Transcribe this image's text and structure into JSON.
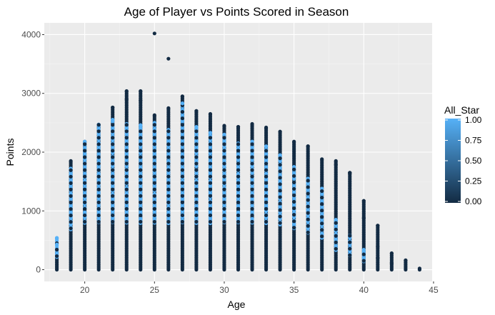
{
  "chart_data": {
    "type": "scatter",
    "title": "Age of Player vs Points Scored in Season",
    "xlabel": "Age",
    "ylabel": "Points",
    "xlim": [
      17.1,
      44.9
    ],
    "ylim": [
      -200,
      4200
    ],
    "xticks": [
      20,
      25,
      30,
      35,
      40,
      45
    ],
    "yticks": [
      0,
      1000,
      2000,
      3000,
      4000
    ],
    "grid": true,
    "background": "#ebebeb",
    "legend": {
      "title": "All_Star",
      "position": "right",
      "labels": [
        "1.00",
        "0.75",
        "0.50",
        "0.25",
        "0.00"
      ],
      "values": [
        1.0,
        0.75,
        0.5,
        0.25,
        0.0
      ],
      "color_low": "#132b43",
      "color_high": "#56b1f7"
    },
    "columns": [
      {
        "x": 18,
        "ymax": 290,
        "allstar_max": 540
      },
      {
        "x": 19,
        "ymax": 1850,
        "allstar_max": 1720
      },
      {
        "x": 20,
        "ymax": 2180,
        "allstar_max": 2180
      },
      {
        "x": 21,
        "ymax": 2470,
        "allstar_max": 2470
      },
      {
        "x": 22,
        "ymax": 2760,
        "allstar_max": 2550
      },
      {
        "x": 23,
        "ymax": 3040,
        "allstar_max": 2480
      },
      {
        "x": 24,
        "ymax": 3040,
        "allstar_max": 2460
      },
      {
        "x": 25,
        "ymax": 2630,
        "allstar_max": 2500
      },
      {
        "x": 26,
        "ymax": 2750,
        "allstar_max": 2380
      },
      {
        "x": 27,
        "ymax": 2950,
        "allstar_max": 2830
      },
      {
        "x": 28,
        "ymax": 2700,
        "allstar_max": 2430
      },
      {
        "x": 29,
        "ymax": 2650,
        "allstar_max": 2330
      },
      {
        "x": 30,
        "ymax": 2450,
        "allstar_max": 2300
      },
      {
        "x": 31,
        "ymax": 2430,
        "allstar_max": 2150
      },
      {
        "x": 32,
        "ymax": 2480,
        "allstar_max": 2180
      },
      {
        "x": 33,
        "ymax": 2420,
        "allstar_max": 2100
      },
      {
        "x": 34,
        "ymax": 2350,
        "allstar_max": 1950
      },
      {
        "x": 35,
        "ymax": 2180,
        "allstar_max": 1750
      },
      {
        "x": 36,
        "ymax": 2100,
        "allstar_max": 1550
      },
      {
        "x": 37,
        "ymax": 1880,
        "allstar_max": 1380
      },
      {
        "x": 38,
        "ymax": 1850,
        "allstar_max": 850
      },
      {
        "x": 39,
        "ymax": 1650,
        "allstar_max": 580
      },
      {
        "x": 40,
        "ymax": 1170,
        "allstar_max": 340
      },
      {
        "x": 41,
        "ymax": 750,
        "allstar_max": 0
      },
      {
        "x": 42,
        "ymax": 280,
        "allstar_max": 0
      },
      {
        "x": 43,
        "ymax": 160,
        "allstar_max": 0
      },
      {
        "x": 44,
        "ymax": 20,
        "allstar_max": 0
      }
    ],
    "outliers": [
      {
        "x": 25,
        "y": 4020,
        "all_star": 0
      },
      {
        "x": 26,
        "y": 3590,
        "all_star": 0
      },
      {
        "x": 23,
        "y": 2900,
        "all_star": 0
      },
      {
        "x": 24,
        "y": 2880,
        "all_star": 0
      },
      {
        "x": 27,
        "y": 2830,
        "all_star": 1
      },
      {
        "x": 38,
        "y": 1790,
        "all_star": 0
      },
      {
        "x": 39,
        "y": 1640,
        "all_star": 0
      },
      {
        "x": 40,
        "y": 880,
        "all_star": 0
      },
      {
        "x": 41,
        "y": 390,
        "all_star": 0
      },
      {
        "x": 41,
        "y": 200,
        "all_star": 0
      },
      {
        "x": 42,
        "y": 110,
        "all_star": 0
      }
    ]
  }
}
